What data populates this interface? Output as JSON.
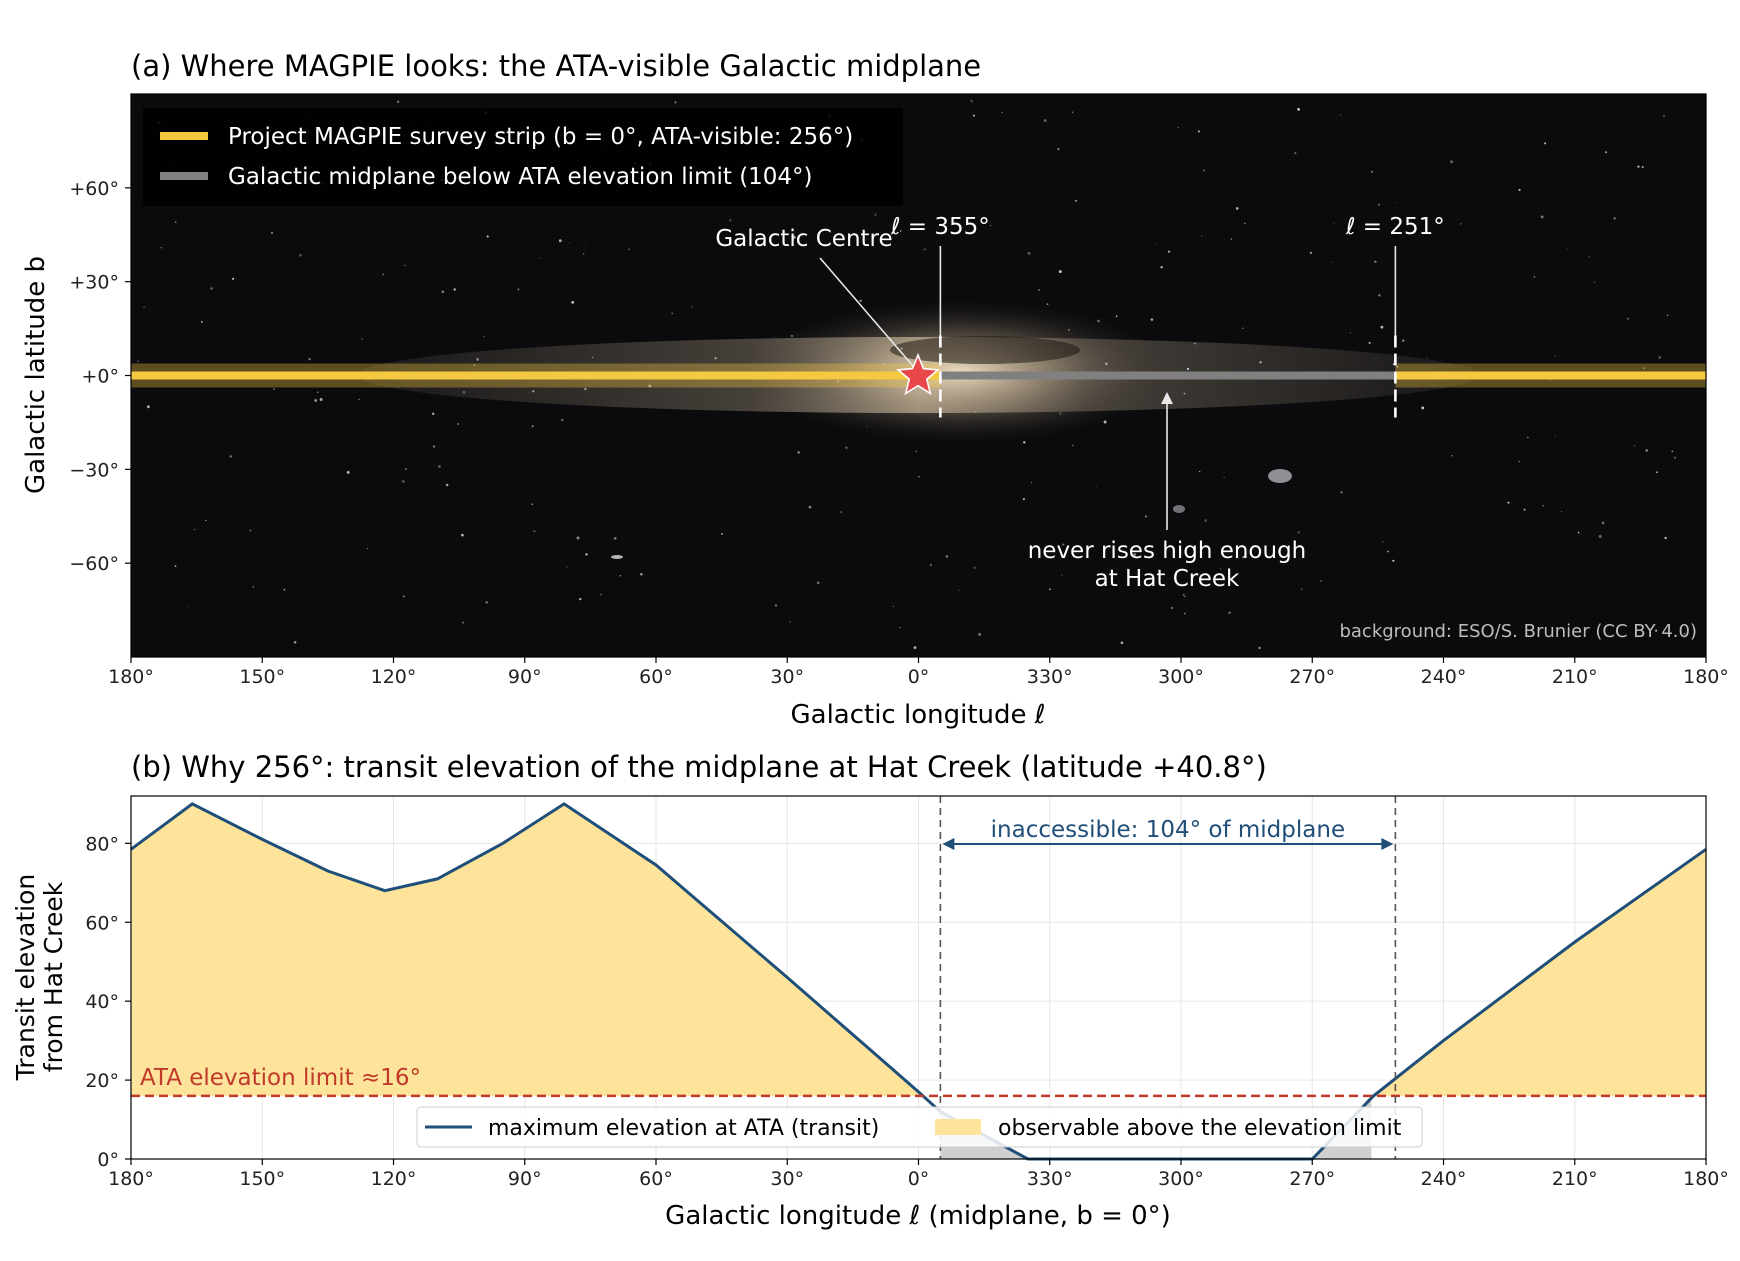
{
  "chart_data": [
    {
      "type": "area",
      "panel": "a",
      "title": "(a) Where MAGPIE looks: the ATA-visible Galactic midplane",
      "xlabel": "Galactic longitude  ℓ",
      "ylabel": "Galactic latitude  b",
      "x_ticks": [
        "180°",
        "150°",
        "120°",
        "90°",
        "60°",
        "30°",
        "0°",
        "330°",
        "300°",
        "270°",
        "240°",
        "210°",
        "180°"
      ],
      "y_ticks": [
        "+60°",
        "+30°",
        "+0°",
        "−30°",
        "−60°"
      ],
      "xlim_offset_deg": [
        -180,
        180
      ],
      "ylim": [
        -90,
        90
      ],
      "legend_position": "top-left",
      "legend": [
        {
          "label": "Project MAGPIE survey strip (b = 0°, ATA-visible: 256°)",
          "color": "#f5c842"
        },
        {
          "label": "Galactic midplane below ATA elevation limit (104°)",
          "color": "#808080"
        }
      ],
      "markers": [
        {
          "label": "ℓ = 355°",
          "l": 355
        },
        {
          "label": "ℓ = 251°",
          "l": 251
        }
      ],
      "visible_segments_l": [
        [
          180,
          355
        ],
        [
          251,
          180
        ]
      ],
      "hidden_segment_l": [
        355,
        251
      ],
      "annotations": {
        "galactic_centre": "Galactic Centre",
        "never_rises_line1": "never rises high enough",
        "never_rises_line2": "at Hat Creek",
        "credit": "background: ESO/S. Brunier (CC BY 4.0)"
      },
      "colors": {
        "strip": "#f5c842",
        "hidden": "#808080",
        "star": "#e8484a",
        "sky": "#0b0b0d"
      }
    },
    {
      "type": "line",
      "panel": "b",
      "title": "(b) Why 256°: transit elevation of the midplane at Hat Creek (latitude +40.8°)",
      "xlabel": "Galactic longitude  ℓ   (midplane, b = 0°)",
      "ylabel_line1": "Transit elevation",
      "ylabel_line2": "from Hat Creek",
      "x_ticks": [
        "180°",
        "150°",
        "120°",
        "90°",
        "60°",
        "30°",
        "0°",
        "330°",
        "300°",
        "270°",
        "240°",
        "210°",
        "180°"
      ],
      "y_ticks": [
        "0°",
        "20°",
        "40°",
        "60°",
        "80°"
      ],
      "ylim": [
        0,
        92
      ],
      "grid": true,
      "series": [
        {
          "name": "maximum elevation at ATA (transit)",
          "x_offset_deg": [
            -180,
            -166,
            -150,
            -135,
            -122,
            -110,
            -95,
            -81,
            -60,
            -30,
            0,
            5,
            25,
            60,
            75,
            90,
            104,
            120,
            150,
            180
          ],
          "values": [
            78.5,
            90,
            81,
            73,
            68,
            71,
            80,
            90,
            74.5,
            46,
            17,
            12,
            0,
            0,
            0,
            0,
            16,
            30,
            55,
            78.5
          ]
        }
      ],
      "fill_label": "observable above the elevation limit",
      "limit": {
        "value": 16,
        "label": "ATA elevation limit  ≈16°"
      },
      "vlines_l": [
        355,
        251
      ],
      "inaccessible_label": "inaccessible: 104°  of midplane",
      "legend_position": "bottom-center",
      "colors": {
        "line": "#1f4e79",
        "fill": "#fde49a",
        "limit": "#c0392b",
        "gray_fill": "#cfcfcf"
      }
    }
  ]
}
